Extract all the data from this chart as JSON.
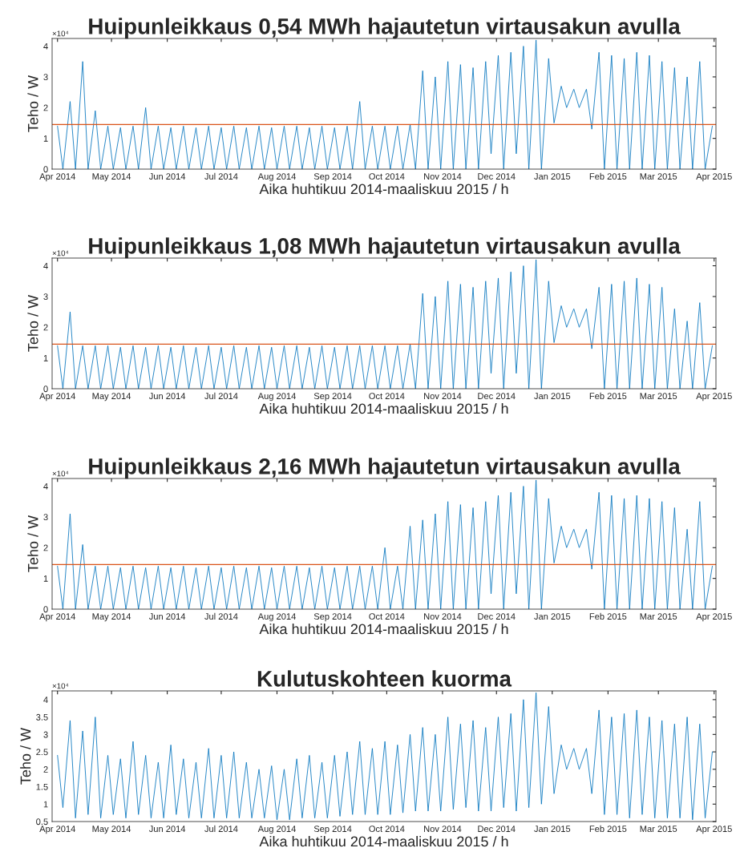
{
  "chart_data": [
    {
      "type": "line",
      "title": "Huipunleikkaus 0,54 MWh hajautetun virtausakun avulla",
      "xlabel": "Aika huhtikuu 2014-maaliskuu 2015 / h",
      "ylabel": "Teho / W",
      "annotations": [
        "×10⁴"
      ],
      "x": [
        "2014-04-01",
        "2014-04-04",
        "2014-04-08",
        "2014-04-11",
        "2014-04-15",
        "2014-04-18",
        "2014-04-22",
        "2014-04-25",
        "2014-04-29",
        "2014-05-02",
        "2014-05-06",
        "2014-05-09",
        "2014-05-13",
        "2014-05-16",
        "2014-05-20",
        "2014-05-23",
        "2014-05-27",
        "2014-05-30",
        "2014-06-03",
        "2014-06-06",
        "2014-06-10",
        "2014-06-13",
        "2014-06-17",
        "2014-06-20",
        "2014-06-24",
        "2014-06-27",
        "2014-07-01",
        "2014-07-04",
        "2014-07-08",
        "2014-07-11",
        "2014-07-15",
        "2014-07-18",
        "2014-07-22",
        "2014-07-25",
        "2014-07-29",
        "2014-08-01",
        "2014-08-05",
        "2014-08-08",
        "2014-08-12",
        "2014-08-15",
        "2014-08-19",
        "2014-08-22",
        "2014-08-26",
        "2014-08-29",
        "2014-09-02",
        "2014-09-05",
        "2014-09-09",
        "2014-09-12",
        "2014-09-16",
        "2014-09-19",
        "2014-09-23",
        "2014-09-26",
        "2014-09-30",
        "2014-10-03",
        "2014-10-07",
        "2014-10-10",
        "2014-10-14",
        "2014-10-17",
        "2014-10-21",
        "2014-10-24",
        "2014-10-28",
        "2014-10-31",
        "2014-11-04",
        "2014-11-07",
        "2014-11-11",
        "2014-11-14",
        "2014-11-18",
        "2014-11-21",
        "2014-11-25",
        "2014-11-28",
        "2014-12-02",
        "2014-12-05",
        "2014-12-09",
        "2014-12-12",
        "2014-12-16",
        "2014-12-19",
        "2014-12-23",
        "2014-12-26",
        "2014-12-30",
        "2015-01-02",
        "2015-01-06",
        "2015-01-09",
        "2015-01-13",
        "2015-01-16",
        "2015-01-20",
        "2015-01-23",
        "2015-01-27",
        "2015-01-30",
        "2015-02-03",
        "2015-02-06",
        "2015-02-10",
        "2015-02-13",
        "2015-02-17",
        "2015-02-20",
        "2015-02-24",
        "2015-02-27",
        "2015-03-03",
        "2015-03-06",
        "2015-03-10",
        "2015-03-13",
        "2015-03-17",
        "2015-03-20",
        "2015-03-24",
        "2015-03-27",
        "2015-03-31"
      ],
      "series": [
        {
          "color": "#0072bd",
          "values": [
            1.4,
            0,
            2.2,
            0,
            3.5,
            0,
            1.9,
            0,
            1.4,
            0,
            1.35,
            0,
            1.4,
            0,
            2.0,
            0,
            1.4,
            0,
            1.35,
            0,
            1.4,
            0,
            1.35,
            0,
            1.4,
            0,
            1.35,
            0,
            1.4,
            0,
            1.35,
            0,
            1.4,
            0,
            1.35,
            0,
            1.4,
            0,
            1.4,
            0,
            1.35,
            0,
            1.4,
            0,
            1.35,
            0,
            1.4,
            0,
            2.2,
            0,
            1.4,
            0,
            1.4,
            0,
            1.4,
            0,
            1.45,
            0,
            3.2,
            0,
            3.0,
            0,
            3.5,
            0,
            3.4,
            0,
            3.3,
            0,
            3.5,
            0.5,
            3.7,
            0,
            3.8,
            0.5,
            4.0,
            0,
            4.2,
            0,
            3.6,
            1.5,
            2.7,
            2.0,
            2.6,
            2.0,
            2.6,
            1.3,
            3.8,
            0,
            3.7,
            0,
            3.6,
            0,
            3.8,
            0,
            3.7,
            0,
            3.5,
            0,
            3.3,
            0,
            3.0,
            0,
            3.5,
            0,
            1.4
          ]
        }
      ],
      "ref_lines": [
        {
          "axis": "y",
          "value": 1.45,
          "color": "#d95319"
        }
      ],
      "xlim": [
        "2014-03-29",
        "2015-04-02"
      ],
      "ylim": [
        0,
        4.25
      ],
      "xticks": [
        {
          "value": "2014-04-01",
          "label": "Apr 2014"
        },
        {
          "value": "2014-05-01",
          "label": "May 2014"
        },
        {
          "value": "2014-06-01",
          "label": "Jun 2014"
        },
        {
          "value": "2014-07-01",
          "label": "Jul 2014"
        },
        {
          "value": "2014-08-01",
          "label": "Aug 2014"
        },
        {
          "value": "2014-09-01",
          "label": "Sep 2014"
        },
        {
          "value": "2014-10-01",
          "label": "Oct 2014"
        },
        {
          "value": "2014-11-01",
          "label": "Nov 2014"
        },
        {
          "value": "2014-12-01",
          "label": "Dec 2014"
        },
        {
          "value": "2015-01-01",
          "label": "Jan 2015"
        },
        {
          "value": "2015-02-01",
          "label": "Feb 2015"
        },
        {
          "value": "2015-03-01",
          "label": "Mar 2015"
        },
        {
          "value": "2015-04-01",
          "label": "Apr 2015"
        }
      ],
      "yticks": [
        0,
        1,
        2,
        3,
        4
      ],
      "marker": "none",
      "line_style": "solid"
    },
    {
      "type": "line",
      "title": "Huipunleikkaus 1,08 MWh hajautetun virtausakun avulla",
      "xlabel": "Aika huhtikuu 2014-maaliskuu 2015 / h",
      "ylabel": "Teho / W",
      "annotations": [
        "×10⁴"
      ],
      "x": [
        "2014-04-01",
        "2014-04-04",
        "2014-04-08",
        "2014-04-11",
        "2014-04-15",
        "2014-04-18",
        "2014-04-22",
        "2014-04-25",
        "2014-04-29",
        "2014-05-02",
        "2014-05-06",
        "2014-05-09",
        "2014-05-13",
        "2014-05-16",
        "2014-05-20",
        "2014-05-23",
        "2014-05-27",
        "2014-05-30",
        "2014-06-03",
        "2014-06-06",
        "2014-06-10",
        "2014-06-13",
        "2014-06-17",
        "2014-06-20",
        "2014-06-24",
        "2014-06-27",
        "2014-07-01",
        "2014-07-04",
        "2014-07-08",
        "2014-07-11",
        "2014-07-15",
        "2014-07-18",
        "2014-07-22",
        "2014-07-25",
        "2014-07-29",
        "2014-08-01",
        "2014-08-05",
        "2014-08-08",
        "2014-08-12",
        "2014-08-15",
        "2014-08-19",
        "2014-08-22",
        "2014-08-26",
        "2014-08-29",
        "2014-09-02",
        "2014-09-05",
        "2014-09-09",
        "2014-09-12",
        "2014-09-16",
        "2014-09-19",
        "2014-09-23",
        "2014-09-26",
        "2014-09-30",
        "2014-10-03",
        "2014-10-07",
        "2014-10-10",
        "2014-10-14",
        "2014-10-17",
        "2014-10-21",
        "2014-10-24",
        "2014-10-28",
        "2014-10-31",
        "2014-11-04",
        "2014-11-07",
        "2014-11-11",
        "2014-11-14",
        "2014-11-18",
        "2014-11-21",
        "2014-11-25",
        "2014-11-28",
        "2014-12-02",
        "2014-12-05",
        "2014-12-09",
        "2014-12-12",
        "2014-12-16",
        "2014-12-19",
        "2014-12-23",
        "2014-12-26",
        "2014-12-30",
        "2015-01-02",
        "2015-01-06",
        "2015-01-09",
        "2015-01-13",
        "2015-01-16",
        "2015-01-20",
        "2015-01-23",
        "2015-01-27",
        "2015-01-30",
        "2015-02-03",
        "2015-02-06",
        "2015-02-10",
        "2015-02-13",
        "2015-02-17",
        "2015-02-20",
        "2015-02-24",
        "2015-02-27",
        "2015-03-03",
        "2015-03-06",
        "2015-03-10",
        "2015-03-13",
        "2015-03-17",
        "2015-03-20",
        "2015-03-24",
        "2015-03-27",
        "2015-03-31"
      ],
      "series": [
        {
          "color": "#0072bd",
          "values": [
            1.4,
            0,
            2.5,
            0,
            1.4,
            0,
            1.4,
            0,
            1.4,
            0,
            1.35,
            0,
            1.4,
            0,
            1.35,
            0,
            1.4,
            0,
            1.35,
            0,
            1.4,
            0,
            1.35,
            0,
            1.4,
            0,
            1.35,
            0,
            1.4,
            0,
            1.35,
            0,
            1.4,
            0,
            1.35,
            0,
            1.4,
            0,
            1.4,
            0,
            1.35,
            0,
            1.4,
            0,
            1.35,
            0,
            1.4,
            0,
            1.4,
            0,
            1.4,
            0,
            1.4,
            0,
            1.4,
            0,
            1.45,
            0,
            3.1,
            0,
            3.0,
            0,
            3.5,
            0,
            3.4,
            0,
            3.3,
            0,
            3.5,
            0.5,
            3.6,
            0,
            3.8,
            0.5,
            4.0,
            0,
            4.2,
            0,
            3.5,
            1.5,
            2.7,
            2.0,
            2.6,
            2.0,
            2.6,
            1.3,
            3.3,
            0,
            3.4,
            0,
            3.5,
            0,
            3.6,
            0,
            3.4,
            0,
            3.3,
            0,
            2.6,
            0,
            2.2,
            0,
            2.8,
            0,
            1.4
          ]
        }
      ],
      "ref_lines": [
        {
          "axis": "y",
          "value": 1.45,
          "color": "#d95319"
        }
      ],
      "xlim": [
        "2014-03-29",
        "2015-04-02"
      ],
      "ylim": [
        0,
        4.25
      ],
      "xticks": [
        {
          "value": "2014-04-01",
          "label": "Apr 2014"
        },
        {
          "value": "2014-05-01",
          "label": "May 2014"
        },
        {
          "value": "2014-06-01",
          "label": "Jun 2014"
        },
        {
          "value": "2014-07-01",
          "label": "Jul 2014"
        },
        {
          "value": "2014-08-01",
          "label": "Aug 2014"
        },
        {
          "value": "2014-09-01",
          "label": "Sep 2014"
        },
        {
          "value": "2014-10-01",
          "label": "Oct 2014"
        },
        {
          "value": "2014-11-01",
          "label": "Nov 2014"
        },
        {
          "value": "2014-12-01",
          "label": "Dec 2014"
        },
        {
          "value": "2015-01-01",
          "label": "Jan 2015"
        },
        {
          "value": "2015-02-01",
          "label": "Feb 2015"
        },
        {
          "value": "2015-03-01",
          "label": "Mar 2015"
        },
        {
          "value": "2015-04-01",
          "label": "Apr 2015"
        }
      ],
      "yticks": [
        0,
        1,
        2,
        3,
        4
      ],
      "marker": "none",
      "line_style": "solid"
    },
    {
      "type": "line",
      "title": "Huipunleikkaus 2,16 MWh hajautetun virtausakun avulla",
      "xlabel": "Aika huhtikuu 2014-maaliskuu 2015 / h",
      "ylabel": "Teho / W",
      "annotations": [
        "×10⁴"
      ],
      "x": [
        "2014-04-01",
        "2014-04-04",
        "2014-04-08",
        "2014-04-11",
        "2014-04-15",
        "2014-04-18",
        "2014-04-22",
        "2014-04-25",
        "2014-04-29",
        "2014-05-02",
        "2014-05-06",
        "2014-05-09",
        "2014-05-13",
        "2014-05-16",
        "2014-05-20",
        "2014-05-23",
        "2014-05-27",
        "2014-05-30",
        "2014-06-03",
        "2014-06-06",
        "2014-06-10",
        "2014-06-13",
        "2014-06-17",
        "2014-06-20",
        "2014-06-24",
        "2014-06-27",
        "2014-07-01",
        "2014-07-04",
        "2014-07-08",
        "2014-07-11",
        "2014-07-15",
        "2014-07-18",
        "2014-07-22",
        "2014-07-25",
        "2014-07-29",
        "2014-08-01",
        "2014-08-05",
        "2014-08-08",
        "2014-08-12",
        "2014-08-15",
        "2014-08-19",
        "2014-08-22",
        "2014-08-26",
        "2014-08-29",
        "2014-09-02",
        "2014-09-05",
        "2014-09-09",
        "2014-09-12",
        "2014-09-16",
        "2014-09-19",
        "2014-09-23",
        "2014-09-26",
        "2014-09-30",
        "2014-10-03",
        "2014-10-07",
        "2014-10-10",
        "2014-10-14",
        "2014-10-17",
        "2014-10-21",
        "2014-10-24",
        "2014-10-28",
        "2014-10-31",
        "2014-11-04",
        "2014-11-07",
        "2014-11-11",
        "2014-11-14",
        "2014-11-18",
        "2014-11-21",
        "2014-11-25",
        "2014-11-28",
        "2014-12-02",
        "2014-12-05",
        "2014-12-09",
        "2014-12-12",
        "2014-12-16",
        "2014-12-19",
        "2014-12-23",
        "2014-12-26",
        "2014-12-30",
        "2015-01-02",
        "2015-01-06",
        "2015-01-09",
        "2015-01-13",
        "2015-01-16",
        "2015-01-20",
        "2015-01-23",
        "2015-01-27",
        "2015-01-30",
        "2015-02-03",
        "2015-02-06",
        "2015-02-10",
        "2015-02-13",
        "2015-02-17",
        "2015-02-20",
        "2015-02-24",
        "2015-02-27",
        "2015-03-03",
        "2015-03-06",
        "2015-03-10",
        "2015-03-13",
        "2015-03-17",
        "2015-03-20",
        "2015-03-24",
        "2015-03-27",
        "2015-03-31"
      ],
      "series": [
        {
          "color": "#0072bd",
          "values": [
            1.4,
            0,
            3.1,
            0,
            2.1,
            0,
            1.4,
            0,
            1.4,
            0,
            1.35,
            0,
            1.4,
            0,
            1.35,
            0,
            1.4,
            0,
            1.35,
            0,
            1.4,
            0,
            1.35,
            0,
            1.4,
            0,
            1.35,
            0,
            1.4,
            0,
            1.35,
            0,
            1.4,
            0,
            1.35,
            0,
            1.4,
            0,
            1.4,
            0,
            1.35,
            0,
            1.4,
            0,
            1.35,
            0,
            1.4,
            0,
            1.4,
            0,
            1.4,
            0,
            2.0,
            0,
            1.4,
            0,
            2.7,
            0,
            2.9,
            0,
            3.1,
            0,
            3.5,
            0,
            3.4,
            0,
            3.3,
            0,
            3.5,
            0.5,
            3.7,
            0,
            3.8,
            0.5,
            4.0,
            0,
            4.2,
            0,
            3.6,
            1.5,
            2.7,
            2.0,
            2.6,
            2.0,
            2.6,
            1.3,
            3.8,
            0,
            3.7,
            0,
            3.6,
            0,
            3.7,
            0,
            3.6,
            0,
            3.5,
            0,
            3.3,
            0,
            2.6,
            0,
            3.5,
            0,
            1.4
          ]
        }
      ],
      "ref_lines": [
        {
          "axis": "y",
          "value": 1.45,
          "color": "#d95319"
        }
      ],
      "xlim": [
        "2014-03-29",
        "2015-04-02"
      ],
      "ylim": [
        0,
        4.25
      ],
      "xticks": [
        {
          "value": "2014-04-01",
          "label": "Apr 2014"
        },
        {
          "value": "2014-05-01",
          "label": "May 2014"
        },
        {
          "value": "2014-06-01",
          "label": "Jun 2014"
        },
        {
          "value": "2014-07-01",
          "label": "Jul 2014"
        },
        {
          "value": "2014-08-01",
          "label": "Aug 2014"
        },
        {
          "value": "2014-09-01",
          "label": "Sep 2014"
        },
        {
          "value": "2014-10-01",
          "label": "Oct 2014"
        },
        {
          "value": "2014-11-01",
          "label": "Nov 2014"
        },
        {
          "value": "2014-12-01",
          "label": "Dec 2014"
        },
        {
          "value": "2015-01-01",
          "label": "Jan 2015"
        },
        {
          "value": "2015-02-01",
          "label": "Feb 2015"
        },
        {
          "value": "2015-03-01",
          "label": "Mar 2015"
        },
        {
          "value": "2015-04-01",
          "label": "Apr 2015"
        }
      ],
      "yticks": [
        0,
        1,
        2,
        3,
        4
      ],
      "marker": "none",
      "line_style": "solid"
    },
    {
      "type": "line",
      "title": "Kulutuskohteen kuorma",
      "xlabel": "Aika huhtikuu 2014-maaliskuu 2015 / h",
      "ylabel": "Teho / W",
      "annotations": [
        "×10⁴"
      ],
      "x": [
        "2014-04-01",
        "2014-04-04",
        "2014-04-08",
        "2014-04-11",
        "2014-04-15",
        "2014-04-18",
        "2014-04-22",
        "2014-04-25",
        "2014-04-29",
        "2014-05-02",
        "2014-05-06",
        "2014-05-09",
        "2014-05-13",
        "2014-05-16",
        "2014-05-20",
        "2014-05-23",
        "2014-05-27",
        "2014-05-30",
        "2014-06-03",
        "2014-06-06",
        "2014-06-10",
        "2014-06-13",
        "2014-06-17",
        "2014-06-20",
        "2014-06-24",
        "2014-06-27",
        "2014-07-01",
        "2014-07-04",
        "2014-07-08",
        "2014-07-11",
        "2014-07-15",
        "2014-07-18",
        "2014-07-22",
        "2014-07-25",
        "2014-07-29",
        "2014-08-01",
        "2014-08-05",
        "2014-08-08",
        "2014-08-12",
        "2014-08-15",
        "2014-08-19",
        "2014-08-22",
        "2014-08-26",
        "2014-08-29",
        "2014-09-02",
        "2014-09-05",
        "2014-09-09",
        "2014-09-12",
        "2014-09-16",
        "2014-09-19",
        "2014-09-23",
        "2014-09-26",
        "2014-09-30",
        "2014-10-03",
        "2014-10-07",
        "2014-10-10",
        "2014-10-14",
        "2014-10-17",
        "2014-10-21",
        "2014-10-24",
        "2014-10-28",
        "2014-10-31",
        "2014-11-04",
        "2014-11-07",
        "2014-11-11",
        "2014-11-14",
        "2014-11-18",
        "2014-11-21",
        "2014-11-25",
        "2014-11-28",
        "2014-12-02",
        "2014-12-05",
        "2014-12-09",
        "2014-12-12",
        "2014-12-16",
        "2014-12-19",
        "2014-12-23",
        "2014-12-26",
        "2014-12-30",
        "2015-01-02",
        "2015-01-06",
        "2015-01-09",
        "2015-01-13",
        "2015-01-16",
        "2015-01-20",
        "2015-01-23",
        "2015-01-27",
        "2015-01-30",
        "2015-02-03",
        "2015-02-06",
        "2015-02-10",
        "2015-02-13",
        "2015-02-17",
        "2015-02-20",
        "2015-02-24",
        "2015-02-27",
        "2015-03-03",
        "2015-03-06",
        "2015-03-10",
        "2015-03-13",
        "2015-03-17",
        "2015-03-20",
        "2015-03-24",
        "2015-03-27",
        "2015-03-31"
      ],
      "series": [
        {
          "color": "#0072bd",
          "values": [
            2.4,
            0.9,
            3.4,
            0.6,
            3.1,
            0.7,
            3.5,
            0.6,
            2.4,
            0.7,
            2.3,
            0.6,
            2.8,
            0.7,
            2.4,
            0.6,
            2.2,
            0.6,
            2.7,
            0.7,
            2.3,
            0.6,
            2.2,
            0.6,
            2.6,
            0.6,
            2.4,
            0.6,
            2.5,
            0.6,
            2.2,
            0.6,
            2.0,
            0.6,
            2.1,
            0.55,
            2.0,
            0.55,
            2.3,
            0.6,
            2.4,
            0.6,
            2.2,
            0.6,
            2.4,
            0.65,
            2.5,
            0.7,
            2.8,
            0.7,
            2.6,
            0.7,
            2.8,
            0.7,
            2.7,
            0.75,
            3.0,
            0.8,
            3.2,
            0.8,
            3.0,
            0.8,
            3.5,
            0.85,
            3.3,
            0.9,
            3.4,
            0.8,
            3.2,
            0.8,
            3.5,
            0.9,
            3.6,
            0.8,
            4.0,
            0.9,
            4.2,
            1.0,
            3.8,
            1.3,
            2.7,
            2.0,
            2.6,
            2.0,
            2.6,
            1.3,
            3.7,
            0.7,
            3.5,
            0.7,
            3.6,
            0.6,
            3.7,
            0.7,
            3.5,
            0.6,
            3.4,
            0.6,
            3.3,
            0.6,
            3.5,
            0.55,
            3.3,
            0.6,
            2.5
          ]
        }
      ],
      "xlim": [
        "2014-03-29",
        "2015-04-02"
      ],
      "ylim": [
        0.5,
        4.25
      ],
      "xticks": [
        {
          "value": "2014-04-01",
          "label": "Apr 2014"
        },
        {
          "value": "2014-05-01",
          "label": "May 2014"
        },
        {
          "value": "2014-06-01",
          "label": "Jun 2014"
        },
        {
          "value": "2014-07-01",
          "label": "Jul 2014"
        },
        {
          "value": "2014-08-01",
          "label": "Aug 2014"
        },
        {
          "value": "2014-09-01",
          "label": "Sep 2014"
        },
        {
          "value": "2014-10-01",
          "label": "Oct 2014"
        },
        {
          "value": "2014-11-01",
          "label": "Nov 2014"
        },
        {
          "value": "2014-12-01",
          "label": "Dec 2014"
        },
        {
          "value": "2015-01-01",
          "label": "Jan 2015"
        },
        {
          "value": "2015-02-01",
          "label": "Feb 2015"
        },
        {
          "value": "2015-03-01",
          "label": "Mar 2015"
        },
        {
          "value": "2015-04-01",
          "label": "Apr 2015"
        }
      ],
      "yticks": [
        0.5,
        1,
        1.5,
        2,
        2.5,
        3,
        3.5,
        4
      ],
      "marker": "none",
      "line_style": "solid"
    }
  ]
}
